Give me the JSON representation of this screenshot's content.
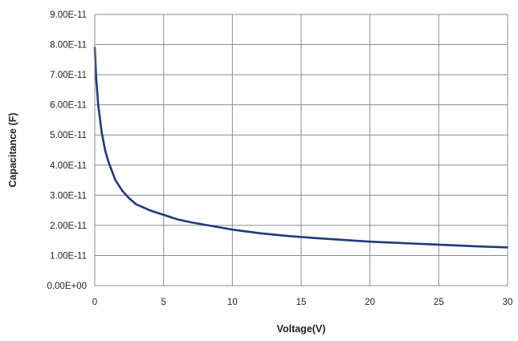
{
  "chart_data": {
    "type": "line",
    "title": "",
    "xlabel": "Voltage(V)",
    "ylabel": "Capacitance (F)",
    "xlim": [
      0,
      30
    ],
    "ylim": [
      0,
      9e-11
    ],
    "x_ticks": [
      0,
      5,
      10,
      15,
      20,
      25,
      30
    ],
    "x_tick_labels": [
      "0",
      "5",
      "10",
      "15",
      "20",
      "25",
      "30"
    ],
    "y_ticks": [
      0,
      1e-11,
      2e-11,
      3e-11,
      4e-11,
      5e-11,
      6e-11,
      7e-11,
      8e-11,
      9e-11
    ],
    "y_tick_labels": [
      "0.00E+00",
      "1.00E-11",
      "2.00E-11",
      "3.00E-11",
      "4.00E-11",
      "5.00E-11",
      "6.00E-11",
      "7.00E-11",
      "8.00E-11",
      "9.00E-11"
    ],
    "grid": true,
    "legend": "none",
    "color": "#1f3a7a",
    "series": [
      {
        "x": [
          0,
          0.1,
          0.25,
          0.5,
          0.75,
          1,
          1.5,
          2,
          2.5,
          3,
          4,
          5,
          6,
          7,
          8,
          10,
          12,
          14,
          16,
          18,
          20,
          22,
          24,
          26,
          28,
          30
        ],
        "y": [
          7.9e-11,
          6.9e-11,
          6e-11,
          5.1e-11,
          4.5e-11,
          4.1e-11,
          3.5e-11,
          3.15e-11,
          2.9e-11,
          2.7e-11,
          2.5e-11,
          2.35e-11,
          2.2e-11,
          2.1e-11,
          2.02e-11,
          1.86e-11,
          1.74e-11,
          1.65e-11,
          1.58e-11,
          1.52e-11,
          1.46e-11,
          1.42e-11,
          1.38e-11,
          1.34e-11,
          1.3e-11,
          1.27e-11
        ]
      }
    ]
  }
}
